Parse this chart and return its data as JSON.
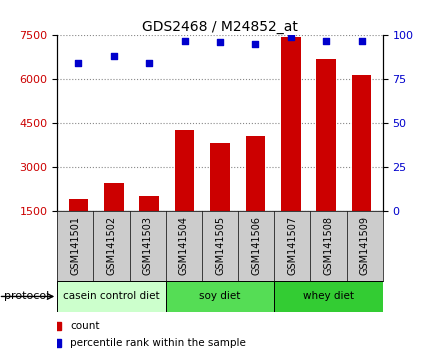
{
  "title": "GDS2468 / M24852_at",
  "samples": [
    "GSM141501",
    "GSM141502",
    "GSM141503",
    "GSM141504",
    "GSM141505",
    "GSM141506",
    "GSM141507",
    "GSM141508",
    "GSM141509"
  ],
  "counts": [
    1900,
    2450,
    2000,
    4250,
    3800,
    4050,
    7450,
    6700,
    6150
  ],
  "percentile_ranks": [
    84,
    88,
    84,
    97,
    96,
    95,
    99,
    97,
    97
  ],
  "ylim_left": [
    1500,
    7500
  ],
  "ylim_right": [
    0,
    100
  ],
  "yticks_left": [
    1500,
    3000,
    4500,
    6000,
    7500
  ],
  "yticks_right": [
    0,
    25,
    50,
    75,
    100
  ],
  "bar_color": "#cc0000",
  "dot_color": "#0000cc",
  "grid_color": "#888888",
  "groups": [
    {
      "label": "casein control diet",
      "start": 0,
      "end": 3,
      "color": "#ccffcc"
    },
    {
      "label": "soy diet",
      "start": 3,
      "end": 6,
      "color": "#55dd55"
    },
    {
      "label": "whey diet",
      "start": 6,
      "end": 9,
      "color": "#33cc33"
    }
  ],
  "protocol_label": "protocol",
  "legend_count_label": "count",
  "legend_pct_label": "percentile rank within the sample",
  "bar_width": 0.55,
  "tick_bg_color": "#cccccc",
  "tick_label_fontsize": 7,
  "title_fontsize": 10
}
